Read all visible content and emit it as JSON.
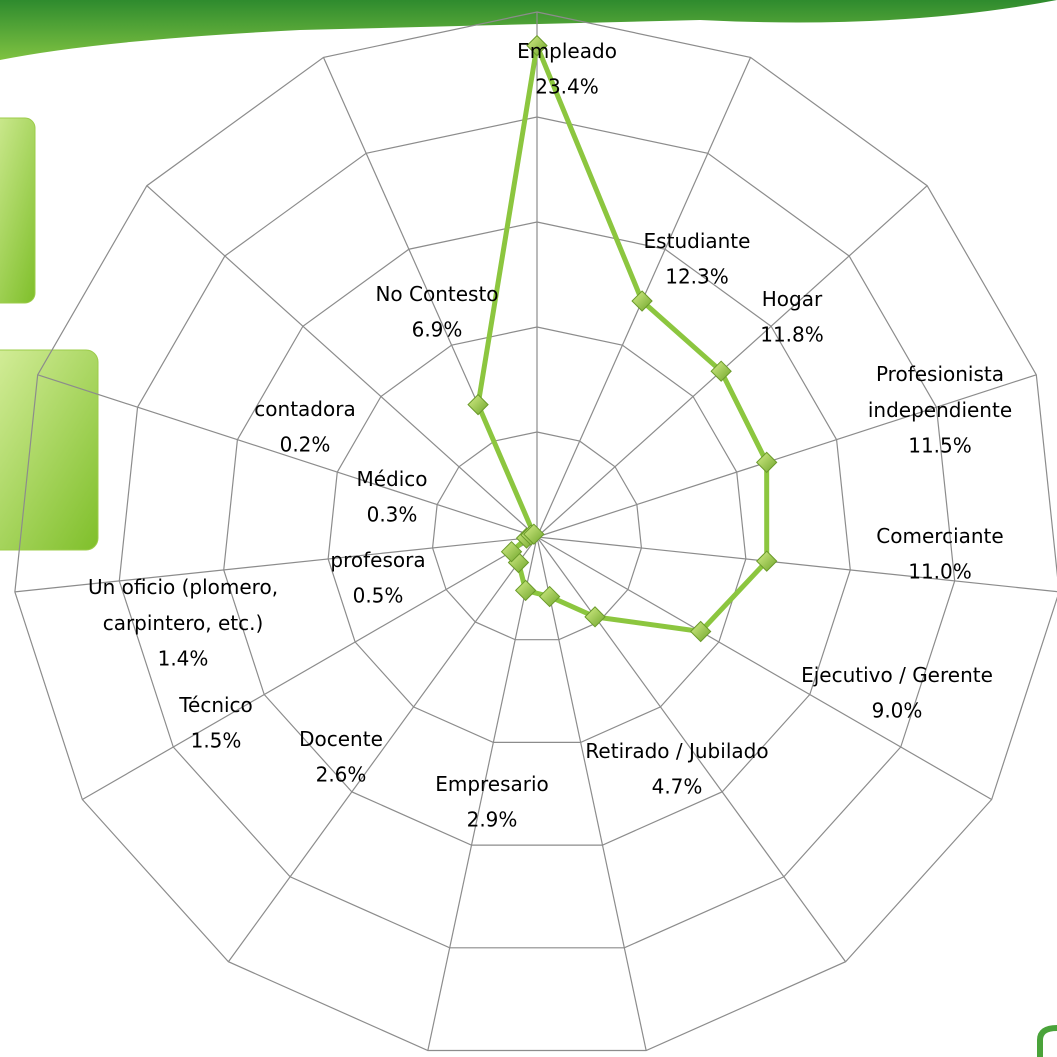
{
  "chart_data": {
    "type": "radar",
    "categories": [
      "Empleado",
      "Estudiante",
      "Hogar",
      "Profesionista\nindependiente",
      "Comerciante",
      "Ejecutivo / Gerente",
      "Retirado / Jubilado",
      "Empresario",
      "Docente",
      "Técnico",
      "Un oficio (plomero,\ncarpintero, etc.)",
      "profesora",
      "Médico",
      "contadora",
      "No Contesto"
    ],
    "values": [
      23.4,
      12.3,
      11.8,
      11.5,
      11.0,
      9.0,
      4.7,
      2.9,
      2.6,
      1.5,
      1.4,
      0.5,
      0.3,
      0.2,
      6.9
    ],
    "value_labels": [
      "23.4%",
      "12.3%",
      "11.8%",
      "11.5%",
      "11.0%",
      "9.0%",
      "4.7%",
      "2.9%",
      "2.6%",
      "1.5%",
      "1.4%",
      "0.5%",
      "0.3%",
      "0.2%",
      "6.9%"
    ],
    "color": "#8cc63f",
    "ylim": [
      0,
      25
    ],
    "yticks": [
      0,
      5,
      10,
      15,
      20,
      25
    ],
    "grid": true
  }
}
